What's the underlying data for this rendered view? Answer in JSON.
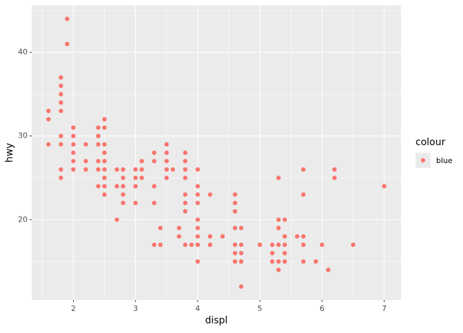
{
  "chart_data": {
    "type": "scatter",
    "x_label": "displ",
    "y_label": "hwy",
    "xlim": [
      1.33,
      7.27
    ],
    "ylim": [
      10.4,
      45.6
    ],
    "xticks": [
      2,
      3,
      4,
      5,
      6,
      7
    ],
    "yticks": [
      20,
      30,
      40
    ],
    "xminorticks": [
      1.5,
      2.5,
      3.5,
      4.5,
      5.5,
      6.5
    ],
    "yminorticks": [
      15,
      25,
      35,
      45
    ],
    "grid": true,
    "legend_title": "colour",
    "series": [
      {
        "name": "blue",
        "color": "#F8766D",
        "x": [
          1.6,
          1.6,
          1.6,
          1.8,
          1.8,
          1.8,
          1.8,
          1.8,
          1.8,
          1.8,
          1.8,
          1.8,
          1.9,
          1.9,
          2,
          2,
          2,
          2,
          2,
          2,
          2.2,
          2.2,
          2.2,
          2.4,
          2.4,
          2.4,
          2.4,
          2.4,
          2.4,
          2.5,
          2.5,
          2.5,
          2.5,
          2.5,
          2.5,
          2.5,
          2.5,
          2.5,
          2.7,
          2.7,
          2.7,
          2.8,
          2.8,
          2.8,
          2.8,
          2.8,
          3,
          3,
          3,
          3,
          3.1,
          3.1,
          3.1,
          3.3,
          3.3,
          3.3,
          3.3,
          3.3,
          3.4,
          3.4,
          3.5,
          3.5,
          3.5,
          3.5,
          3.5,
          3.6,
          3.7,
          3.7,
          3.8,
          3.8,
          3.8,
          3.8,
          3.8,
          3.8,
          3.8,
          3.8,
          3.9,
          4,
          4,
          4,
          4,
          4,
          4,
          4,
          4,
          4,
          4.2,
          4.2,
          4.2,
          4.4,
          4.6,
          4.6,
          4.6,
          4.6,
          4.6,
          4.6,
          4.6,
          4.7,
          4.7,
          4.7,
          4.7,
          4.7,
          5,
          5.2,
          5.2,
          5.2,
          5.3,
          5.3,
          5.3,
          5.3,
          5.3,
          5.3,
          5.4,
          5.4,
          5.4,
          5.4,
          5.4,
          5.6,
          5.7,
          5.7,
          5.7,
          5.7,
          5.7,
          5.9,
          6,
          6.1,
          6.2,
          6.2,
          6.5,
          7
        ],
        "values": [
          33,
          32,
          29,
          37,
          36,
          35,
          34,
          33,
          30,
          29,
          26,
          25,
          44,
          41,
          31,
          30,
          29,
          28,
          27,
          26,
          29,
          27,
          26,
          31,
          30,
          29,
          27,
          26,
          24,
          32,
          31,
          29,
          28,
          27,
          26,
          25,
          24,
          23,
          26,
          24,
          20,
          26,
          25,
          24,
          23,
          22,
          26,
          25,
          24,
          22,
          27,
          26,
          25,
          28,
          27,
          24,
          22,
          17,
          19,
          17,
          29,
          28,
          27,
          26,
          25,
          26,
          19,
          18,
          28,
          27,
          26,
          25,
          23,
          22,
          21,
          17,
          17,
          26,
          24,
          23,
          22,
          20,
          19,
          18,
          17,
          15,
          23,
          18,
          17,
          18,
          23,
          22,
          21,
          19,
          17,
          16,
          15,
          19,
          17,
          16,
          15,
          12,
          17,
          17,
          16,
          15,
          25,
          20,
          19,
          17,
          15,
          14,
          20,
          18,
          17,
          16,
          15,
          18,
          26,
          23,
          18,
          17,
          15,
          15,
          17,
          14,
          26,
          25,
          17,
          24
        ]
      }
    ]
  }
}
